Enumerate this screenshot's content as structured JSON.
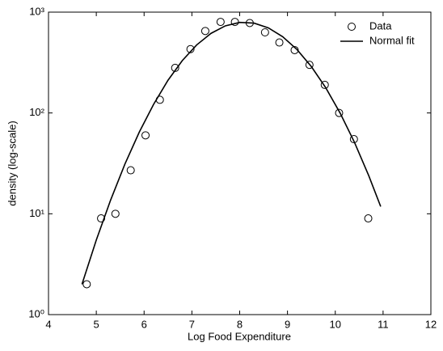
{
  "chart_data": {
    "type": "scatter-line",
    "x_label": "Log Food Expenditure",
    "y_label": "density (log-scale)",
    "xlim": [
      4,
      12
    ],
    "xticks": [
      4,
      5,
      6,
      7,
      8,
      9,
      10,
      11,
      12
    ],
    "ylim": [
      1,
      1000
    ],
    "yticks": [
      {
        "value": 1,
        "label": "10⁰"
      },
      {
        "value": 10,
        "label": "10¹"
      },
      {
        "value": 100,
        "label": "10²"
      },
      {
        "value": 1000,
        "label": "10³"
      }
    ],
    "log_y": true,
    "legend": "top-right",
    "series": [
      {
        "name": "Data",
        "kind": "markers",
        "color": "#000000",
        "x": [
          4.8,
          5.1,
          5.4,
          5.72,
          6.03,
          6.33,
          6.65,
          6.97,
          7.28,
          7.6,
          7.9,
          8.21,
          8.53,
          8.83,
          9.15,
          9.46,
          9.78,
          10.08,
          10.39,
          10.69
        ],
        "values": [
          2,
          9,
          10,
          27,
          60,
          135,
          280,
          430,
          650,
          800,
          800,
          780,
          630,
          500,
          420,
          300,
          190,
          100,
          55,
          9
        ]
      },
      {
        "name": "Normal fit",
        "kind": "line",
        "color": "#000000",
        "x": [
          4.7,
          5.0,
          5.3,
          5.6,
          5.9,
          6.2,
          6.5,
          6.8,
          7.1,
          7.4,
          7.7,
          8.0,
          8.3,
          8.6,
          8.9,
          9.2,
          9.5,
          9.8,
          10.1,
          10.4,
          10.7,
          10.95
        ],
        "values": [
          2.0,
          5.5,
          13.7,
          31.2,
          64.7,
          122,
          211,
          331,
          473,
          616,
          731,
          791,
          778,
          698,
          570,
          425,
          288,
          178,
          100,
          51.3,
          23.9,
          11.8
        ]
      }
    ]
  }
}
